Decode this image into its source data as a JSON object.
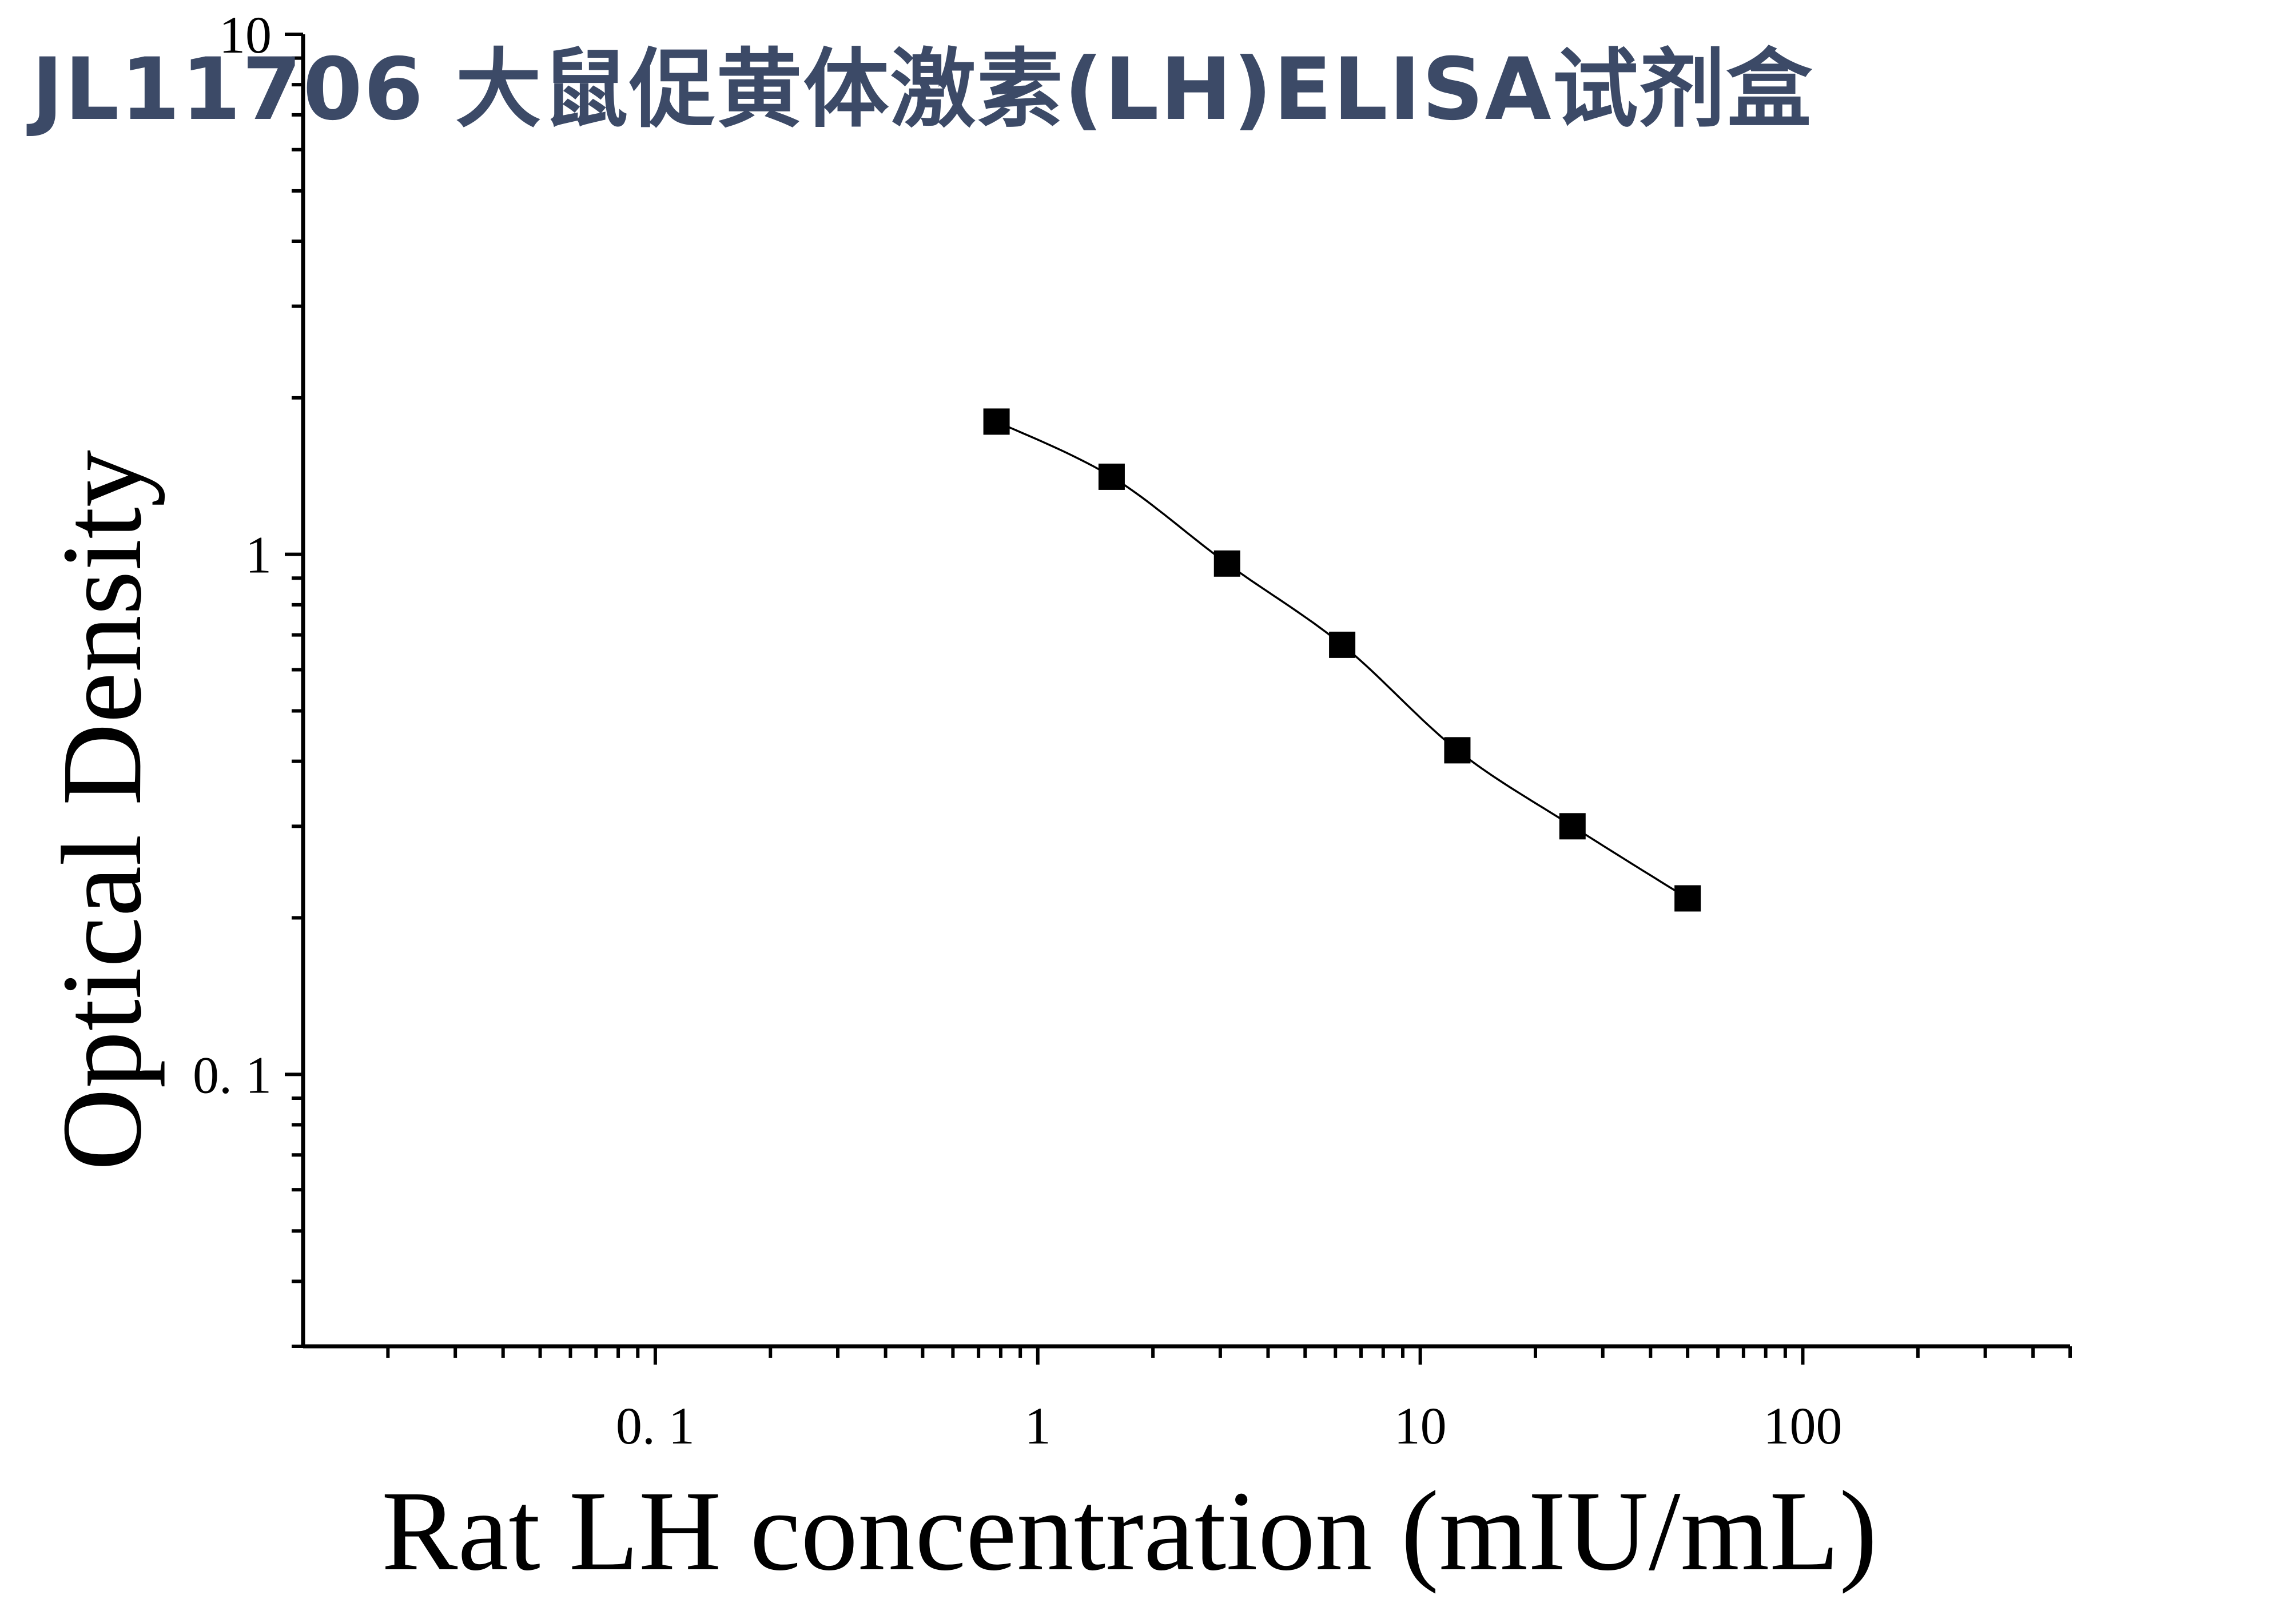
{
  "page_title": "JL11706 大鼠促黄体激素(LH)ELISA试剂盒",
  "colors": {
    "title": "#3c4a67",
    "axis": "#000000",
    "marker": "#000000",
    "curve": "#000000",
    "background": "#ffffff"
  },
  "chart_data": {
    "type": "scatter",
    "title": "",
    "xlabel": "Rat LH concentration (mIU/mL)",
    "ylabel": "Optical Density",
    "x_scale": "log",
    "y_scale": "log",
    "xlim": [
      0.012,
      500
    ],
    "ylim": [
      0.03,
      10
    ],
    "x_ticks": [
      {
        "value": 0.1,
        "label": "0. 1"
      },
      {
        "value": 1,
        "label": "1"
      },
      {
        "value": 10,
        "label": "10"
      },
      {
        "value": 100,
        "label": "100"
      }
    ],
    "y_ticks": [
      {
        "value": 0.1,
        "label": "0. 1"
      },
      {
        "value": 1,
        "label": "1"
      },
      {
        "value": 10,
        "label": "10"
      }
    ],
    "grid": false,
    "legend": "none",
    "marker": "square",
    "series": [
      {
        "x": [
          0.78,
          1.56,
          3.125,
          6.25,
          12.5,
          25,
          50
        ],
        "y": [
          1.8,
          1.41,
          0.96,
          0.67,
          0.42,
          0.3,
          0.218
        ]
      }
    ],
    "fit_curve": "four-parameter logistic"
  }
}
